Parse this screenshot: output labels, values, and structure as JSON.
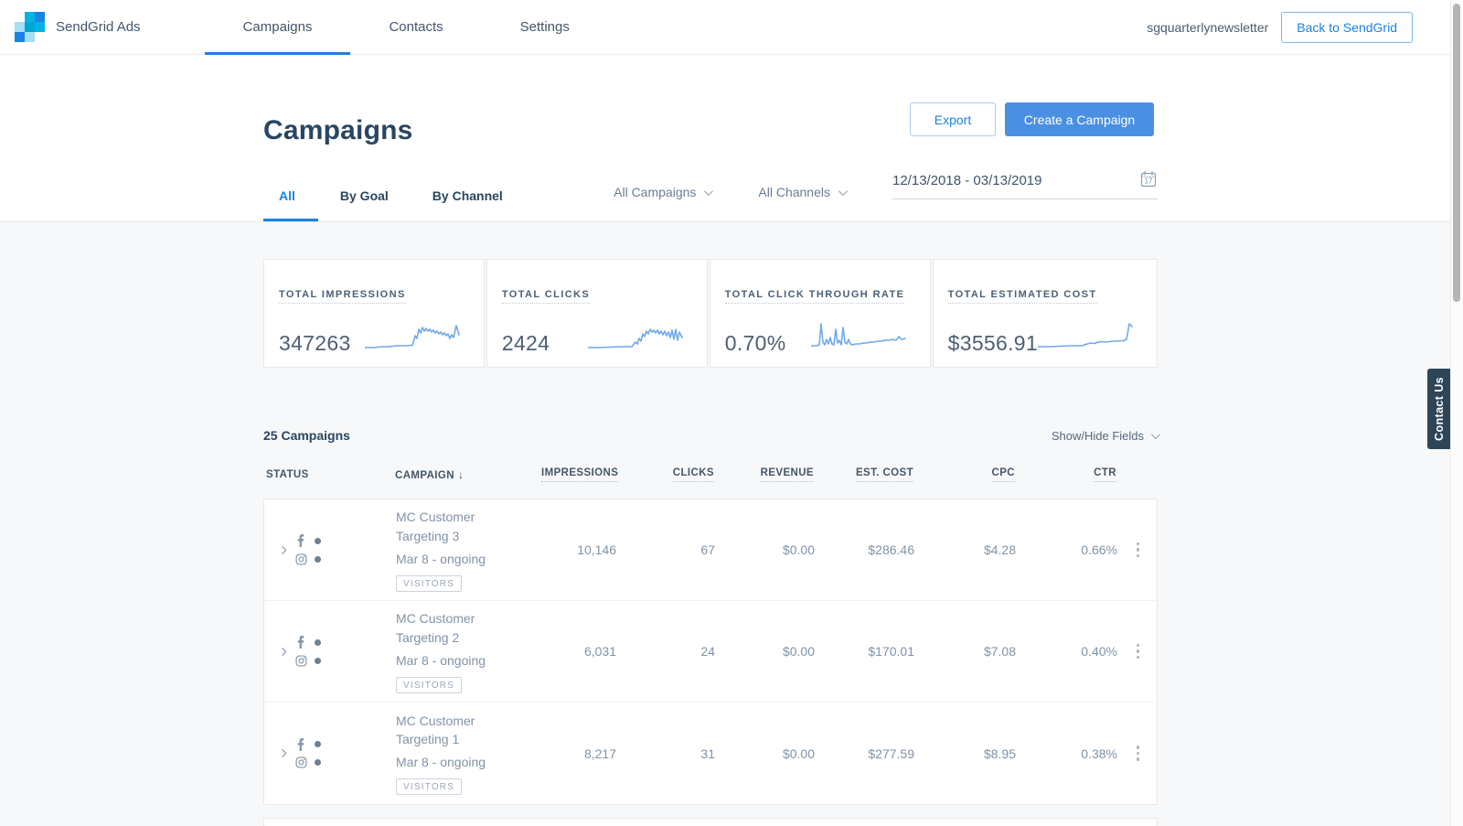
{
  "colors": {
    "accent_blue": "#1a82e2",
    "create_button_blue": "#4a90e2",
    "navy": "#294661",
    "sparkline_blue": "#6fa9ec",
    "contact_tab_navy": "#2e4557"
  },
  "nav": {
    "brand": "SendGrid Ads",
    "items": [
      {
        "label": "Campaigns"
      },
      {
        "label": "Contacts"
      },
      {
        "label": "Settings"
      }
    ],
    "account": "sgquarterlynewsletter",
    "back_button": "Back to SendGrid"
  },
  "header": {
    "title": "Campaigns",
    "export_button": "Export",
    "create_button": "Create a Campaign"
  },
  "tabs": [
    {
      "label": "All"
    },
    {
      "label": "By Goal"
    },
    {
      "label": "By Channel"
    }
  ],
  "filters": {
    "campaigns_dropdown": "All Campaigns",
    "channels_dropdown": "All Channels",
    "date_range": "12/13/2018 - 03/13/2019",
    "calendar_day": "17"
  },
  "stats": [
    {
      "label": "TOTAL IMPRESSIONS",
      "value": "347263",
      "spark": [
        [
          0,
          35
        ],
        [
          10,
          35
        ],
        [
          18,
          34
        ],
        [
          26,
          34
        ],
        [
          34,
          33
        ],
        [
          44,
          33
        ],
        [
          52,
          32.5
        ],
        [
          55,
          22
        ],
        [
          57,
          25
        ],
        [
          59,
          15
        ],
        [
          61,
          19
        ],
        [
          63,
          13
        ],
        [
          65,
          17
        ],
        [
          67,
          14
        ],
        [
          69,
          17
        ],
        [
          71,
          15
        ],
        [
          73,
          18
        ],
        [
          75,
          16
        ],
        [
          77,
          19
        ],
        [
          79,
          17
        ],
        [
          81,
          20
        ],
        [
          83,
          18
        ],
        [
          85,
          21
        ],
        [
          87,
          19
        ],
        [
          89,
          22
        ],
        [
          91,
          20
        ],
        [
          93,
          25
        ],
        [
          95,
          21
        ],
        [
          97,
          24
        ],
        [
          100,
          11
        ],
        [
          103,
          21
        ]
      ]
    },
    {
      "label": "TOTAL CLICKS",
      "value": "2424",
      "spark": [
        [
          0,
          35
        ],
        [
          12,
          35
        ],
        [
          24,
          34.5
        ],
        [
          36,
          34
        ],
        [
          48,
          34
        ],
        [
          52,
          29
        ],
        [
          54,
          31
        ],
        [
          56,
          25
        ],
        [
          58,
          28
        ],
        [
          60,
          20
        ],
        [
          62,
          23
        ],
        [
          64,
          17
        ],
        [
          66,
          20
        ],
        [
          68,
          15
        ],
        [
          70,
          18
        ],
        [
          72,
          16
        ],
        [
          74,
          19
        ],
        [
          76,
          16
        ],
        [
          78,
          20
        ],
        [
          80,
          17
        ],
        [
          82,
          21
        ],
        [
          84,
          17
        ],
        [
          86,
          22
        ],
        [
          88,
          18
        ],
        [
          90,
          24
        ],
        [
          92,
          16
        ],
        [
          94,
          26
        ],
        [
          96,
          15
        ],
        [
          98,
          27
        ],
        [
          100,
          18
        ],
        [
          103,
          24
        ]
      ]
    },
    {
      "label": "TOTAL CLICK THROUGH RATE",
      "value": "0.70%",
      "spark": [
        [
          0,
          33
        ],
        [
          6,
          33
        ],
        [
          9,
          32
        ],
        [
          11,
          9
        ],
        [
          13,
          29
        ],
        [
          15,
          32
        ],
        [
          17,
          26
        ],
        [
          19,
          31
        ],
        [
          21,
          24
        ],
        [
          23,
          31
        ],
        [
          25,
          32
        ],
        [
          27,
          15
        ],
        [
          29,
          30
        ],
        [
          31,
          27
        ],
        [
          33,
          32
        ],
        [
          35,
          13
        ],
        [
          37,
          29
        ],
        [
          39,
          31
        ],
        [
          41,
          26
        ],
        [
          43,
          31
        ],
        [
          45,
          32
        ],
        [
          49,
          31
        ],
        [
          53,
          31
        ],
        [
          57,
          30
        ],
        [
          61,
          30
        ],
        [
          65,
          29
        ],
        [
          69,
          29
        ],
        [
          73,
          28
        ],
        [
          77,
          28
        ],
        [
          81,
          27
        ],
        [
          85,
          27
        ],
        [
          89,
          26
        ],
        [
          93,
          27
        ],
        [
          96,
          23
        ],
        [
          99,
          26
        ],
        [
          103,
          25
        ]
      ]
    },
    {
      "label": "TOTAL ESTIMATED COST",
      "value": "$3556.91",
      "spark": [
        [
          0,
          34
        ],
        [
          12,
          34
        ],
        [
          24,
          33.5
        ],
        [
          36,
          33
        ],
        [
          48,
          33
        ],
        [
          54,
          31
        ],
        [
          58,
          30
        ],
        [
          62,
          30.5
        ],
        [
          66,
          29
        ],
        [
          70,
          28.5
        ],
        [
          74,
          29
        ],
        [
          78,
          28.5
        ],
        [
          82,
          28
        ],
        [
          86,
          28
        ],
        [
          90,
          27.5
        ],
        [
          94,
          27.5
        ],
        [
          97,
          26
        ],
        [
          100,
          9
        ],
        [
          103,
          12
        ]
      ]
    }
  ],
  "campaigns_section": {
    "count_label": "25 Campaigns",
    "show_hide_label": "Show/Hide Fields",
    "sort_arrow": "↓"
  },
  "table": {
    "columns": {
      "status": "STATUS",
      "campaign": "CAMPAIGN",
      "impressions": "IMPRESSIONS",
      "clicks": "CLICKS",
      "revenue": "REVENUE",
      "est_cost": "EST. COST",
      "cpc": "CPC",
      "ctr": "CTR"
    },
    "rows": [
      {
        "name": "MC Customer Targeting 3",
        "date": "Mar 8 - ongoing",
        "badge": "VISITORS",
        "impressions": "10,146",
        "clicks": "67",
        "revenue": "$0.00",
        "est_cost": "$286.46",
        "cpc": "$4.28",
        "ctr": "0.66%"
      },
      {
        "name": "MC Customer Targeting 2",
        "date": "Mar 8 - ongoing",
        "badge": "VISITORS",
        "impressions": "6,031",
        "clicks": "24",
        "revenue": "$0.00",
        "est_cost": "$170.01",
        "cpc": "$7.08",
        "ctr": "0.40%"
      },
      {
        "name": "MC Customer Targeting 1",
        "date": "Mar 8 - ongoing",
        "badge": "VISITORS",
        "impressions": "8,217",
        "clicks": "31",
        "revenue": "$0.00",
        "est_cost": "$277.59",
        "cpc": "$8.95",
        "ctr": "0.38%"
      }
    ]
  },
  "contact_us": "Contact Us"
}
